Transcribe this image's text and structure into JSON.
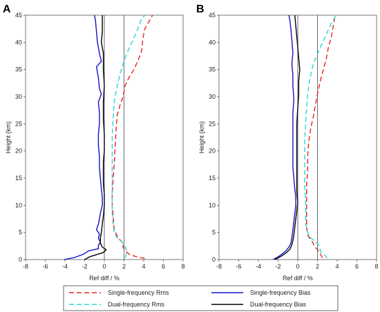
{
  "chart_data": [
    {
      "panel": "A",
      "type": "line",
      "xlabel": "Ref diff / %",
      "ylabel": "Height (km)",
      "xlim": [
        -8,
        8
      ],
      "ylim": [
        0,
        45
      ],
      "xticks": [
        -8,
        -6,
        -4,
        -2,
        0,
        2,
        4,
        6,
        8
      ],
      "yticks": [
        0,
        5,
        10,
        15,
        20,
        25,
        30,
        35,
        40,
        45
      ],
      "reference_lines_x": [
        0,
        2
      ],
      "grid": false,
      "series": [
        {
          "name": "Single-frequency Rms",
          "color": "#e8221c",
          "dash": "dashed",
          "points": [
            [
              4.1,
              0.2
            ],
            [
              3.3,
              0.5
            ],
            [
              2.6,
              0.9
            ],
            [
              2.1,
              1.6
            ],
            [
              1.9,
              2.3
            ],
            [
              1.9,
              3.0
            ],
            [
              1.4,
              4.0
            ],
            [
              1.0,
              5.5
            ],
            [
              0.9,
              8.0
            ],
            [
              0.8,
              10.0
            ],
            [
              0.8,
              12.0
            ],
            [
              0.9,
              15.0
            ],
            [
              1.0,
              17.5
            ],
            [
              1.1,
              21.0
            ],
            [
              1.2,
              24.0
            ],
            [
              1.3,
              26.5
            ],
            [
              1.6,
              28.5
            ],
            [
              1.9,
              30.0
            ],
            [
              2.1,
              32.0
            ],
            [
              2.5,
              33.5
            ],
            [
              3.0,
              35.0
            ],
            [
              3.5,
              37.0
            ],
            [
              3.8,
              38.5
            ],
            [
              3.9,
              40.5
            ],
            [
              4.1,
              42.5
            ],
            [
              4.6,
              44.0
            ],
            [
              4.9,
              45.0
            ]
          ]
        },
        {
          "name": "Dual-frequency Rms",
          "color": "#2ed3d3",
          "dash": "dashed",
          "points": [
            [
              2.1,
              0.3
            ],
            [
              2.2,
              0.8
            ],
            [
              2.3,
              1.6
            ],
            [
              2.1,
              2.4
            ],
            [
              1.8,
              3.2
            ],
            [
              1.3,
              4.0
            ],
            [
              1.0,
              5.0
            ],
            [
              0.9,
              6.5
            ],
            [
              0.8,
              8.5
            ],
            [
              0.8,
              11.0
            ],
            [
              0.8,
              14.0
            ],
            [
              0.8,
              17.0
            ],
            [
              0.8,
              20.0
            ],
            [
              0.8,
              23.0
            ],
            [
              0.9,
              26.0
            ],
            [
              1.0,
              29.0
            ],
            [
              1.2,
              31.0
            ],
            [
              1.5,
              33.5
            ],
            [
              1.9,
              36.0
            ],
            [
              2.3,
              38.0
            ],
            [
              2.8,
              40.0
            ],
            [
              3.3,
              42.0
            ],
            [
              3.7,
              44.0
            ],
            [
              4.1,
              45.0
            ]
          ]
        },
        {
          "name": "Single-frequency Bias",
          "color": "#1010c8",
          "dash": "solid",
          "points": [
            [
              -4.1,
              0.0
            ],
            [
              -3.0,
              0.4
            ],
            [
              -2.1,
              1.0
            ],
            [
              -1.6,
              1.6
            ],
            [
              -0.6,
              2.0
            ],
            [
              -0.6,
              2.6
            ],
            [
              -0.4,
              3.2
            ],
            [
              -0.6,
              3.9
            ],
            [
              -0.5,
              4.7
            ],
            [
              -0.8,
              5.5
            ],
            [
              -0.6,
              6.5
            ],
            [
              -0.5,
              7.5
            ],
            [
              -0.4,
              8.5
            ],
            [
              -0.2,
              10.0
            ],
            [
              -0.2,
              11.5
            ],
            [
              -0.3,
              13.0
            ],
            [
              -0.4,
              15.0
            ],
            [
              -0.5,
              17.0
            ],
            [
              -0.5,
              19.0
            ],
            [
              -0.6,
              21.0
            ],
            [
              -0.6,
              23.0
            ],
            [
              -0.5,
              25.0
            ],
            [
              -0.5,
              27.0
            ],
            [
              -0.6,
              29.0
            ],
            [
              -0.3,
              30.5
            ],
            [
              -0.5,
              31.5
            ],
            [
              -0.6,
              33.5
            ],
            [
              -0.8,
              35.5
            ],
            [
              -0.3,
              36.5
            ],
            [
              -0.5,
              38.0
            ],
            [
              -0.7,
              40.0
            ],
            [
              -0.8,
              42.0
            ],
            [
              -0.9,
              44.0
            ],
            [
              -1.0,
              45.0
            ]
          ]
        },
        {
          "name": "Dual-frequency Bias",
          "color": "#000000",
          "dash": "solid",
          "points": [
            [
              -2.0,
              0.0
            ],
            [
              -1.5,
              0.5
            ],
            [
              -0.8,
              0.9
            ],
            [
              -0.1,
              1.3
            ],
            [
              0.2,
              1.8
            ],
            [
              -0.2,
              2.3
            ],
            [
              -0.4,
              3.0
            ],
            [
              -0.4,
              4.0
            ],
            [
              -0.3,
              5.0
            ],
            [
              -0.2,
              6.5
            ],
            [
              -0.1,
              8.0
            ],
            [
              0.0,
              10.0
            ],
            [
              0.0,
              12.0
            ],
            [
              -0.1,
              14.0
            ],
            [
              -0.1,
              16.0
            ],
            [
              -0.1,
              18.0
            ],
            [
              0.0,
              20.0
            ],
            [
              0.0,
              23.0
            ],
            [
              -0.1,
              26.0
            ],
            [
              -0.1,
              29.0
            ],
            [
              0.0,
              32.0
            ],
            [
              -0.1,
              35.0
            ],
            [
              -0.1,
              38.0
            ],
            [
              -0.3,
              40.0
            ],
            [
              -0.2,
              42.0
            ],
            [
              -0.2,
              44.0
            ],
            [
              -0.2,
              45.0
            ]
          ]
        }
      ]
    },
    {
      "panel": "B",
      "type": "line",
      "xlabel": "Ref diff / %",
      "ylabel": "Height (km)",
      "xlim": [
        -8,
        8
      ],
      "ylim": [
        0,
        45
      ],
      "xticks": [
        -8,
        -6,
        -4,
        -2,
        0,
        2,
        4,
        6,
        8
      ],
      "yticks": [
        0,
        5,
        10,
        15,
        20,
        25,
        30,
        35,
        40,
        45
      ],
      "reference_lines_x": [
        0,
        2
      ],
      "grid": false,
      "series": [
        {
          "name": "Single-frequency Rms",
          "color": "#e8221c",
          "dash": "dashed",
          "points": [
            [
              2.5,
              0.3
            ],
            [
              2.3,
              1.0
            ],
            [
              2.0,
              1.8
            ],
            [
              1.7,
              2.5
            ],
            [
              1.5,
              3.2
            ],
            [
              1.0,
              4.5
            ],
            [
              0.9,
              6.0
            ],
            [
              0.9,
              8.0
            ],
            [
              0.9,
              10.0
            ],
            [
              0.9,
              12.0
            ],
            [
              0.9,
              14.0
            ],
            [
              1.0,
              16.5
            ],
            [
              1.0,
              19.0
            ],
            [
              1.1,
              21.5
            ],
            [
              1.3,
              24.0
            ],
            [
              1.6,
              26.5
            ],
            [
              1.8,
              28.5
            ],
            [
              2.0,
              30.5
            ],
            [
              2.3,
              33.0
            ],
            [
              2.6,
              35.0
            ],
            [
              2.9,
              37.0
            ],
            [
              3.1,
              39.0
            ],
            [
              3.4,
              41.0
            ],
            [
              3.6,
              43.0
            ],
            [
              3.8,
              45.0
            ]
          ]
        },
        {
          "name": "Dual-frequency Rms",
          "color": "#2ed3d3",
          "dash": "dashed",
          "points": [
            [
              3.0,
              0.3
            ],
            [
              2.7,
              0.8
            ],
            [
              2.3,
              1.5
            ],
            [
              2.2,
              2.5
            ],
            [
              1.8,
              3.3
            ],
            [
              1.3,
              4.0
            ],
            [
              1.0,
              5.0
            ],
            [
              0.8,
              6.5
            ],
            [
              0.8,
              8.5
            ],
            [
              0.8,
              11.0
            ],
            [
              0.7,
              13.5
            ],
            [
              0.7,
              16.0
            ],
            [
              0.7,
              19.0
            ],
            [
              0.7,
              22.0
            ],
            [
              0.8,
              25.0
            ],
            [
              0.9,
              28.0
            ],
            [
              1.0,
              30.5
            ],
            [
              1.2,
              33.0
            ],
            [
              1.5,
              35.5
            ],
            [
              1.9,
              37.5
            ],
            [
              2.4,
              39.5
            ],
            [
              2.9,
              41.5
            ],
            [
              3.4,
              43.5
            ],
            [
              3.9,
              45.0
            ]
          ]
        },
        {
          "name": "Single-frequency Bias",
          "color": "#1010c8",
          "dash": "solid",
          "points": [
            [
              -2.5,
              0.0
            ],
            [
              -2.0,
              0.5
            ],
            [
              -1.6,
              1.0
            ],
            [
              -1.2,
              1.6
            ],
            [
              -0.9,
              2.3
            ],
            [
              -0.7,
              3.0
            ],
            [
              -0.6,
              4.0
            ],
            [
              -0.5,
              5.5
            ],
            [
              -0.4,
              7.0
            ],
            [
              -0.3,
              8.5
            ],
            [
              -0.2,
              10.0
            ],
            [
              -0.2,
              11.5
            ],
            [
              -0.3,
              13.0
            ],
            [
              -0.4,
              15.0
            ],
            [
              -0.5,
              17.0
            ],
            [
              -0.5,
              19.5
            ],
            [
              -0.5,
              22.0
            ],
            [
              -0.5,
              24.5
            ],
            [
              -0.5,
              27.0
            ],
            [
              -0.4,
              29.5
            ],
            [
              -0.5,
              32.0
            ],
            [
              -0.5,
              34.0
            ],
            [
              -0.6,
              36.0
            ],
            [
              -0.5,
              38.0
            ],
            [
              -0.6,
              40.5
            ],
            [
              -0.7,
              42.5
            ],
            [
              -0.8,
              44.0
            ],
            [
              -0.9,
              45.0
            ]
          ]
        },
        {
          "name": "Dual-frequency Bias",
          "color": "#000000",
          "dash": "solid",
          "points": [
            [
              -2.3,
              0.0
            ],
            [
              -1.7,
              0.6
            ],
            [
              -1.2,
              1.2
            ],
            [
              -0.8,
              1.9
            ],
            [
              -0.6,
              2.7
            ],
            [
              -0.5,
              3.5
            ],
            [
              -0.4,
              4.5
            ],
            [
              -0.3,
              6.0
            ],
            [
              -0.2,
              7.5
            ],
            [
              -0.1,
              9.0
            ],
            [
              0.0,
              10.5
            ],
            [
              -0.1,
              12.5
            ],
            [
              -0.1,
              14.5
            ],
            [
              -0.1,
              17.0
            ],
            [
              -0.1,
              19.5
            ],
            [
              -0.1,
              22.0
            ],
            [
              -0.1,
              25.0
            ],
            [
              0.0,
              28.0
            ],
            [
              0.1,
              30.5
            ],
            [
              0.1,
              33.0
            ],
            [
              0.2,
              35.0
            ],
            [
              0.1,
              37.0
            ],
            [
              0.0,
              39.0
            ],
            [
              -0.1,
              41.0
            ],
            [
              -0.2,
              43.0
            ],
            [
              -0.3,
              45.0
            ]
          ]
        }
      ]
    }
  ],
  "legend": {
    "placement": "bottom-center",
    "items": [
      {
        "label": "Single-frequency Rms",
        "color": "#e8221c",
        "dash": "dashed"
      },
      {
        "label": "Single-frequency Bias",
        "color": "#1010c8",
        "dash": "solid"
      },
      {
        "label": "Dual-frequency Rms",
        "color": "#2ed3d3",
        "dash": "dashed"
      },
      {
        "label": "Dual-frequency Bias",
        "color": "#000000",
        "dash": "solid"
      }
    ]
  }
}
